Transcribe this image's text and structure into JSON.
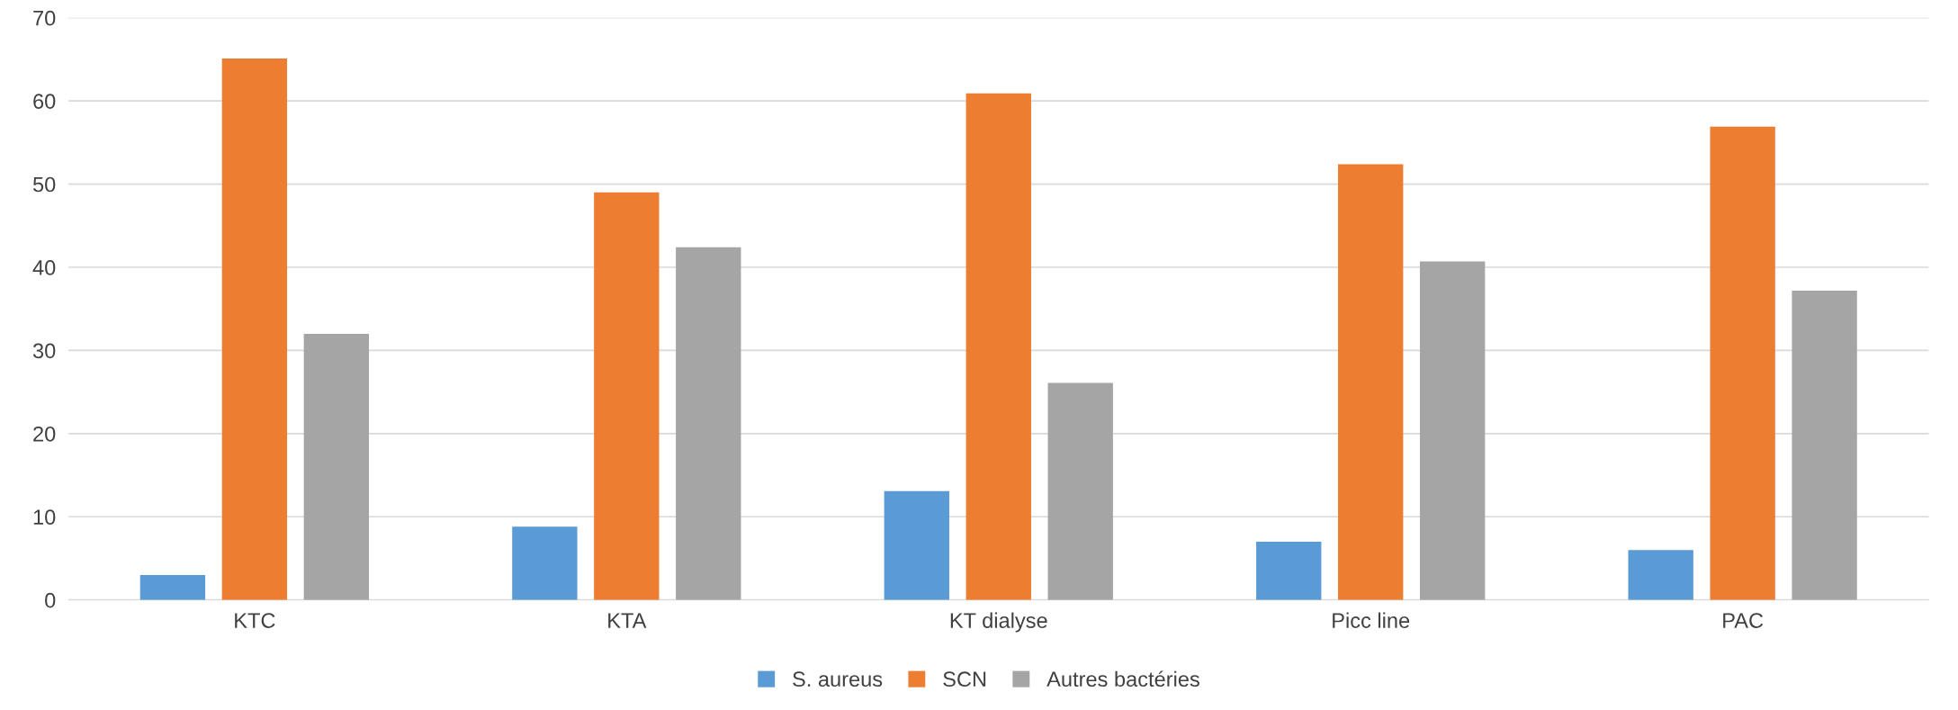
{
  "chart_data": {
    "type": "bar",
    "categories": [
      "KTC",
      "KTA",
      "KT dialyse",
      "Picc line",
      "PAC"
    ],
    "series": [
      {
        "name": "S. aureus",
        "color": "#5b9bd5",
        "values": [
          3,
          8.8,
          13.1,
          7,
          6
        ]
      },
      {
        "name": "SCN",
        "color": "#ed7d31",
        "values": [
          65.1,
          49,
          60.9,
          52.4,
          56.9
        ]
      },
      {
        "name": "Autres bactéries",
        "color": "#a5a5a5",
        "values": [
          32,
          42.4,
          26.1,
          40.7,
          37.2
        ]
      }
    ],
    "ylim": [
      0,
      70
    ],
    "yticks": [
      0,
      10,
      20,
      30,
      40,
      50,
      60,
      70
    ],
    "grid": "y",
    "legend": "bottom"
  }
}
